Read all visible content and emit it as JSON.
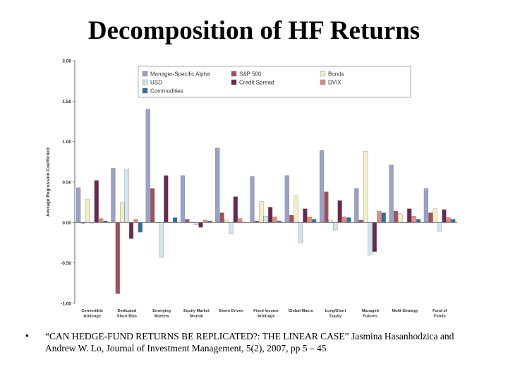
{
  "slide": {
    "title": "Decomposition of HF Returns",
    "bullet": "•",
    "citation": "“CAN HEDGE-FUND RETURNS BE REPLICATED?: THE LINEAR CASE” Jasmina Hasanhodzica and Andrew W. Lo, Journal of Investment Management, 5(2), 2007, pp 5 – 45"
  },
  "chart_data": {
    "type": "bar",
    "title": "",
    "xlabel": "",
    "ylabel": "Average Regression Coefficient",
    "ylim": [
      -1.0,
      2.0
    ],
    "yticks": [
      "2.00",
      "1.50",
      "1.00",
      "0.50",
      "0.00",
      "-0.50",
      "-1.00"
    ],
    "yticks_values": [
      2.0,
      1.5,
      1.0,
      0.5,
      0.0,
      -0.5,
      -1.0
    ],
    "grid": false,
    "legend_position": "top-center",
    "categories": [
      [
        "Convertible",
        "Arbitrage"
      ],
      [
        "Dedicated",
        "Short Bias"
      ],
      [
        "Emerging",
        "Markets"
      ],
      [
        "Equity Market",
        "Neutral"
      ],
      [
        "Event Driven"
      ],
      [
        "Fixed Income",
        "Arbitrage"
      ],
      [
        "Global Macro"
      ],
      [
        "Long/Short",
        "Equity"
      ],
      [
        "Managed",
        "Futures"
      ],
      [
        "Multi-Strategy"
      ],
      [
        "Fund of",
        "Funds"
      ]
    ],
    "series": [
      {
        "name": "Manager-Specific Alpha",
        "color": "#9aa1c9",
        "values": [
          0.43,
          0.67,
          1.4,
          0.58,
          0.92,
          0.57,
          0.58,
          0.89,
          0.42,
          0.71,
          0.42
        ]
      },
      {
        "name": "S&P 500",
        "color": "#a1505f",
        "values": [
          -0.01,
          -0.88,
          0.42,
          0.04,
          0.12,
          0.02,
          0.09,
          0.38,
          0.03,
          0.14,
          0.12
        ]
      },
      {
        "name": "Bonds",
        "color": "#f2efc4",
        "values": [
          0.29,
          0.25,
          0.0,
          0.0,
          0.03,
          0.26,
          0.33,
          0.03,
          0.88,
          0.11,
          0.17
        ]
      },
      {
        "name": "USD",
        "color": "#cfe6ef",
        "values": [
          -0.01,
          0.66,
          -0.43,
          -0.03,
          -0.14,
          0.08,
          -0.25,
          -0.09,
          -0.4,
          0.0,
          -0.11
        ]
      },
      {
        "name": "Credit Spread",
        "color": "#6b2750",
        "values": [
          0.52,
          -0.2,
          0.58,
          -0.06,
          0.32,
          0.19,
          0.17,
          0.27,
          -0.36,
          0.17,
          0.16
        ]
      },
      {
        "name": "DVIX",
        "color": "#e48a7c",
        "values": [
          0.05,
          0.04,
          0.0,
          0.03,
          0.05,
          0.07,
          0.07,
          0.07,
          0.14,
          0.08,
          0.06
        ]
      },
      {
        "name": "Commodities",
        "color": "#2d6f9e",
        "values": [
          0.02,
          -0.12,
          0.06,
          0.02,
          0.0,
          0.02,
          0.04,
          0.06,
          0.12,
          0.04,
          0.04
        ]
      }
    ]
  }
}
